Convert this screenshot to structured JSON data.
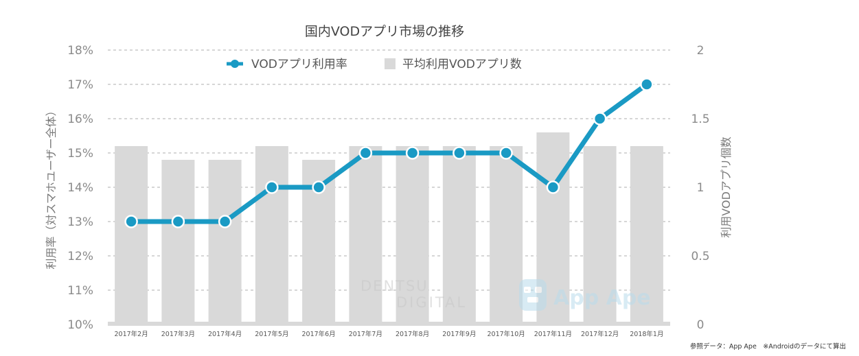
{
  "chart_data": {
    "type": "bar+line",
    "title": "国内VODアプリ市場の推移",
    "categories": [
      "2017年2月",
      "2017年3月",
      "2017年4月",
      "2017年5月",
      "2017年6月",
      "2017年7月",
      "2017年8月",
      "2017年9月",
      "2017年10月",
      "2017年11月",
      "2017年12月",
      "2018年1月"
    ],
    "series": [
      {
        "name": "VODアプリ利用率",
        "type": "line",
        "axis": "left",
        "unit": "%",
        "values": [
          13,
          13,
          13,
          14,
          14,
          15,
          15,
          15,
          15,
          14,
          16,
          17
        ],
        "color": "#1a9ac4"
      },
      {
        "name": "平均利用VODアプリ数",
        "type": "bar",
        "axis": "right",
        "values": [
          1.3,
          1.2,
          1.2,
          1.3,
          1.2,
          1.3,
          1.3,
          1.3,
          1.3,
          1.4,
          1.3,
          1.3
        ],
        "color": "#d9d9d9"
      }
    ],
    "y_left": {
      "label": "利用率（対スマホユーザー全体）",
      "ylim": [
        10,
        18
      ],
      "ticks": [
        "10%",
        "11%",
        "12%",
        "13%",
        "14%",
        "15%",
        "16%",
        "17%",
        "18%"
      ]
    },
    "y_right": {
      "label": "利用VODアプリ個数",
      "ylim": [
        0,
        2
      ],
      "ticks": [
        "0",
        "0.5",
        "1",
        "1.5",
        "2"
      ]
    },
    "grid": true,
    "legend": "top-center"
  },
  "footnote": "参照データ：App Ape　※Androidのデータにて算出",
  "watermarks": {
    "dentsu_line1": "DENTSU",
    "dentsu_line2": "DIGITAL",
    "appape": "App Ape"
  }
}
